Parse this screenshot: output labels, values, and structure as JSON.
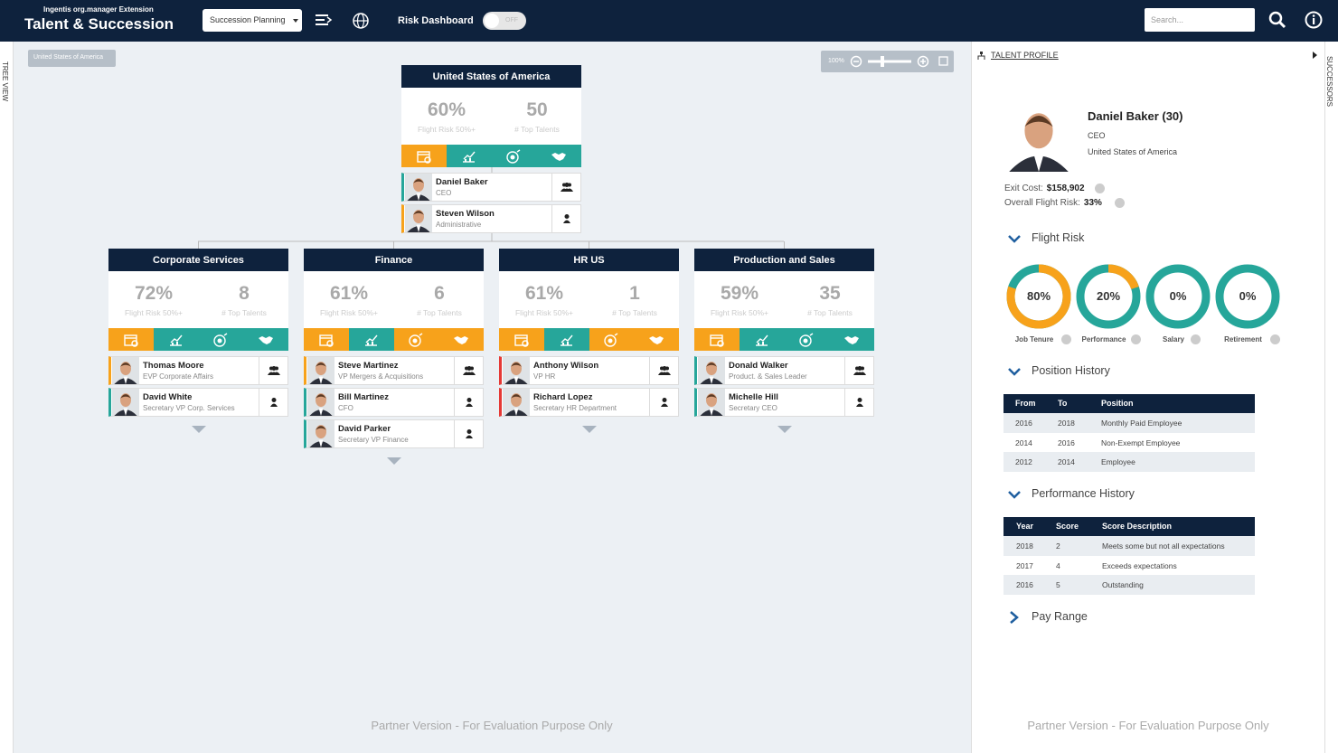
{
  "header": {
    "subtitle": "Ingentis org.manager Extension",
    "title": "Talent & Succession",
    "view_select": "Succession Planning",
    "risk_dashboard_label": "Risk Dashboard",
    "toggle": "OFF",
    "search_placeholder": "Search..."
  },
  "sidebars": {
    "left": "TREE VIEW",
    "right": "SUCCESSORS"
  },
  "breadcrumb": "United States of America",
  "zoom": "100%",
  "org_chart": {
    "root": {
      "title": "United States of America",
      "flight_risk": "60%",
      "flight_risk_label": "Flight Risk 50%+",
      "top_talents": "50",
      "top_talents_label": "# Top Talents",
      "indicators": [
        "#f7a21b",
        "#26a69a",
        "#26a69a",
        "#26a69a"
      ],
      "people": [
        {
          "name": "Daniel Baker",
          "role": "CEO",
          "status_color": "#26a69a"
        },
        {
          "name": "Steven Wilson",
          "role": "Administrative",
          "status_color": "#f7a21b"
        }
      ]
    },
    "children": [
      {
        "title": "Corporate Services",
        "flight_risk": "72%",
        "flight_risk_label": "Flight Risk 50%+",
        "top_talents": "8",
        "top_talents_label": "# Top Talents",
        "indicators": [
          "#f7a21b",
          "#26a69a",
          "#26a69a",
          "#26a69a"
        ],
        "people": [
          {
            "name": "Thomas Moore",
            "role": "EVP Corporate Affairs",
            "status_color": "#f7a21b"
          },
          {
            "name": "David White",
            "role": "Secretary VP Corp. Services",
            "status_color": "#26a69a"
          }
        ]
      },
      {
        "title": "Finance",
        "flight_risk": "61%",
        "flight_risk_label": "Flight Risk 50%+",
        "top_talents": "6",
        "top_talents_label": "# Top Talents",
        "indicators": [
          "#f7a21b",
          "#26a69a",
          "#f7a21b",
          "#f7a21b"
        ],
        "people": [
          {
            "name": "Steve Martinez",
            "role": "VP Mergers & Acquisitions",
            "status_color": "#f7a21b"
          },
          {
            "name": "Bill Martinez",
            "role": "CFO",
            "status_color": "#26a69a"
          },
          {
            "name": "David Parker",
            "role": "Secretary VP Finance",
            "status_color": "#26a69a"
          }
        ]
      },
      {
        "title": "HR US",
        "flight_risk": "61%",
        "flight_risk_label": "Flight Risk 50%+",
        "top_talents": "1",
        "top_talents_label": "# Top Talents",
        "indicators": [
          "#f7a21b",
          "#26a69a",
          "#f7a21b",
          "#f7a21b"
        ],
        "people": [
          {
            "name": "Anthony Wilson",
            "role": "VP HR",
            "status_color": "#e53935"
          },
          {
            "name": "Richard Lopez",
            "role": "Secretary HR Department",
            "status_color": "#e53935"
          }
        ]
      },
      {
        "title": "Production and Sales",
        "flight_risk": "59%",
        "flight_risk_label": "Flight Risk 50%+",
        "top_talents": "35",
        "top_talents_label": "# Top Talents",
        "indicators": [
          "#f7a21b",
          "#26a69a",
          "#26a69a",
          "#26a69a"
        ],
        "people": [
          {
            "name": "Donald Walker",
            "role": "Product. & Sales Leader",
            "status_color": "#26a69a"
          },
          {
            "name": "Michelle Hill",
            "role": "Secretary CEO",
            "status_color": "#26a69a"
          }
        ]
      }
    ]
  },
  "profile": {
    "section_title": "TALENT PROFILE",
    "name": "Daniel Baker (30)",
    "position": "CEO",
    "location": "United States of America",
    "exit_cost_label": "Exit Cost:",
    "exit_cost": "$158,902",
    "overall_flight_risk_label": "Overall Flight Risk:",
    "overall_flight_risk": "33%",
    "flight_risk": {
      "title": "Flight Risk",
      "gauges": [
        {
          "name": "Job Tenure",
          "value": 80,
          "value_label": "80%"
        },
        {
          "name": "Performance",
          "value": 20,
          "value_label": "20%"
        },
        {
          "name": "Salary",
          "value": 0,
          "value_label": "0%"
        },
        {
          "name": "Retirement",
          "value": 0,
          "value_label": "0%"
        }
      ]
    },
    "position_history": {
      "title": "Position History",
      "columns": [
        "From",
        "To",
        "Position"
      ],
      "rows": [
        [
          "2016",
          "2018",
          "Monthly Paid Employee"
        ],
        [
          "2014",
          "2016",
          "Non-Exempt Employee"
        ],
        [
          "2012",
          "2014",
          "Employee"
        ]
      ]
    },
    "performance_history": {
      "title": "Performance History",
      "columns": [
        "Year",
        "Score",
        "Score Description"
      ],
      "rows": [
        [
          "2018",
          "2",
          "Meets some but not all expectations"
        ],
        [
          "2017",
          "4",
          "Exceeds expectations"
        ],
        [
          "2016",
          "5",
          "Outstanding"
        ]
      ]
    },
    "pay_range": "Pay Range"
  },
  "footer": "Partner Version - For Evaluation Purpose Only"
}
